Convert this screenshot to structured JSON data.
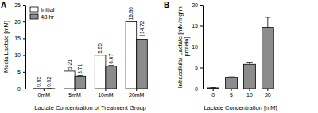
{
  "chart_data": [
    {
      "type": "bar",
      "title": "A",
      "xlabel": "Lactate Concentration of Treatment Group",
      "ylabel": "Media Lactate [mM]",
      "categories": [
        "0mM",
        "5mM",
        "10mM",
        "20mM"
      ],
      "series": [
        {
          "name": "Initial",
          "color": "#ffffff",
          "values": [
            0.05,
            5.21,
            9.95,
            19.96
          ]
        },
        {
          "name": "48 hr",
          "color": "#8c8c8c",
          "values": [
            0.02,
            3.71,
            6.67,
            14.72
          ],
          "errors": [
            0.01,
            0.15,
            0.25,
            1.1
          ]
        }
      ],
      "ylim": [
        0,
        25
      ],
      "yticks": [
        0,
        5,
        10,
        15,
        20,
        25
      ],
      "legend": "upper left",
      "data_labels": true
    },
    {
      "type": "bar",
      "title": "B",
      "xlabel": "Lactate Concentration [mM]",
      "ylabel": "Intracellular Lactate [mM/mg/ml protein]",
      "categories": [
        "0",
        "5",
        "10",
        "20"
      ],
      "values": [
        0.2,
        2.6,
        5.8,
        14.6
      ],
      "errors": [
        0.05,
        0.2,
        0.35,
        2.4
      ],
      "color": "#8c8c8c",
      "ylim": [
        0,
        20
      ],
      "yticks": [
        0,
        5,
        10,
        15,
        20
      ]
    }
  ]
}
